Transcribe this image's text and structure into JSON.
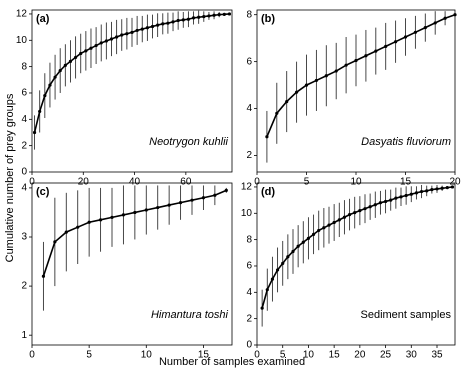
{
  "xlabel": "Number of samples examined",
  "ylabel": "Cumulative number of prey groups",
  "chart_data": [
    {
      "type": "line",
      "panel_label": "(a)",
      "annotation": "Neotrygon kuhlii",
      "x": [
        1,
        3,
        5,
        7,
        9,
        11,
        13,
        15,
        17,
        19,
        21,
        23,
        25,
        27,
        29,
        31,
        33,
        35,
        37,
        39,
        41,
        43,
        45,
        47,
        49,
        51,
        53,
        55,
        57,
        59,
        61,
        63,
        65,
        67,
        69,
        71,
        73,
        75,
        77
      ],
      "series": [
        {
          "color": "#000000",
          "values": [
            3.0,
            4.6,
            5.8,
            6.6,
            7.2,
            7.7,
            8.1,
            8.4,
            8.7,
            9.0,
            9.2,
            9.4,
            9.6,
            9.8,
            9.95,
            10.1,
            10.25,
            10.4,
            10.5,
            10.6,
            10.75,
            10.85,
            10.95,
            11.05,
            11.15,
            11.25,
            11.3,
            11.4,
            11.5,
            11.55,
            11.6,
            11.7,
            11.75,
            11.8,
            11.85,
            11.9,
            11.95,
            11.97,
            12.0
          ],
          "errors": [
            1.3,
            1.6,
            1.7,
            1.7,
            1.7,
            1.7,
            1.6,
            1.6,
            1.6,
            1.5,
            1.5,
            1.5,
            1.4,
            1.4,
            1.4,
            1.3,
            1.3,
            1.2,
            1.2,
            1.1,
            1.1,
            1.0,
            1.0,
            0.9,
            0.9,
            0.8,
            0.8,
            0.7,
            0.7,
            0.6,
            0.6,
            0.5,
            0.5,
            0.4,
            0.3,
            0.3,
            0.2,
            0.1,
            0
          ]
        }
      ],
      "xlim": [
        0,
        78
      ],
      "ylim": [
        0,
        12.3
      ],
      "xticks": [
        0,
        20,
        40,
        60
      ],
      "yticks": [
        0,
        2,
        4,
        6,
        8,
        10,
        12
      ]
    },
    {
      "type": "line",
      "panel_label": "(b)",
      "annotation": "Dasyatis fluviorum",
      "x": [
        1,
        2,
        3,
        4,
        5,
        6,
        7,
        8,
        9,
        10,
        11,
        12,
        13,
        14,
        15,
        16,
        17,
        18,
        19,
        20
      ],
      "series": [
        {
          "color": "#000000",
          "values": [
            2.8,
            3.8,
            4.3,
            4.7,
            5.0,
            5.2,
            5.4,
            5.6,
            5.85,
            6.05,
            6.25,
            6.45,
            6.65,
            6.85,
            7.05,
            7.25,
            7.45,
            7.65,
            7.85,
            8.0
          ],
          "errors": [
            1.1,
            1.3,
            1.3,
            1.3,
            1.3,
            1.3,
            1.3,
            1.2,
            1.2,
            1.1,
            1.1,
            1.0,
            1.0,
            0.9,
            0.8,
            0.7,
            0.6,
            0.5,
            0.3,
            0
          ]
        }
      ],
      "xlim": [
        0,
        20
      ],
      "ylim": [
        1.3,
        8.2
      ],
      "xticks": [
        0,
        5,
        10,
        15,
        20
      ],
      "yticks": [
        2,
        4,
        6,
        8
      ]
    },
    {
      "type": "line",
      "panel_label": "(c)",
      "annotation": "Himantura toshi",
      "x": [
        1,
        2,
        3,
        4,
        5,
        6,
        7,
        8,
        9,
        10,
        11,
        12,
        13,
        14,
        15,
        16,
        17
      ],
      "series": [
        {
          "color": "#000000",
          "values": [
            2.2,
            2.9,
            3.1,
            3.2,
            3.3,
            3.35,
            3.4,
            3.45,
            3.5,
            3.55,
            3.6,
            3.65,
            3.7,
            3.75,
            3.8,
            3.85,
            3.95
          ],
          "errors": [
            0.7,
            0.9,
            0.8,
            0.75,
            0.7,
            0.65,
            0.6,
            0.6,
            0.55,
            0.5,
            0.45,
            0.4,
            0.35,
            0.3,
            0.25,
            0.2,
            0.05
          ]
        }
      ],
      "xlim": [
        0,
        17.5
      ],
      "ylim": [
        0.8,
        4.1
      ],
      "xticks": [
        0,
        5,
        10,
        15
      ],
      "yticks": [
        1,
        2,
        3,
        4
      ]
    },
    {
      "type": "line",
      "panel_label": "(d)",
      "annotation": "Sediment samples",
      "x": [
        1,
        2,
        3,
        4,
        5,
        6,
        7,
        8,
        9,
        10,
        11,
        12,
        13,
        14,
        15,
        16,
        17,
        18,
        19,
        20,
        21,
        22,
        23,
        24,
        25,
        26,
        27,
        28,
        29,
        30,
        31,
        32,
        33,
        34,
        35,
        36,
        37,
        38
      ],
      "series": [
        {
          "color": "#000000",
          "values": [
            2.8,
            4.2,
            5.0,
            5.7,
            6.2,
            6.7,
            7.1,
            7.5,
            7.8,
            8.1,
            8.4,
            8.7,
            8.9,
            9.1,
            9.3,
            9.5,
            9.7,
            9.9,
            10.05,
            10.2,
            10.35,
            10.5,
            10.65,
            10.8,
            10.9,
            11.0,
            11.15,
            11.25,
            11.35,
            11.45,
            11.55,
            11.65,
            11.7,
            11.8,
            11.85,
            11.9,
            11.95,
            12.0
          ],
          "errors": [
            1.4,
            1.6,
            1.7,
            1.7,
            1.7,
            1.7,
            1.7,
            1.6,
            1.6,
            1.6,
            1.5,
            1.5,
            1.5,
            1.4,
            1.4,
            1.3,
            1.3,
            1.2,
            1.2,
            1.1,
            1.1,
            1.0,
            1.0,
            0.9,
            0.9,
            0.8,
            0.8,
            0.7,
            0.7,
            0.6,
            0.5,
            0.5,
            0.4,
            0.3,
            0.3,
            0.2,
            0.1,
            0
          ]
        }
      ],
      "xlim": [
        0,
        38.5
      ],
      "ylim": [
        0,
        12.3
      ],
      "xticks": [
        0,
        5,
        10,
        15,
        20,
        25,
        30,
        35
      ],
      "yticks": [
        0,
        2,
        4,
        6,
        8,
        10,
        12
      ]
    }
  ]
}
